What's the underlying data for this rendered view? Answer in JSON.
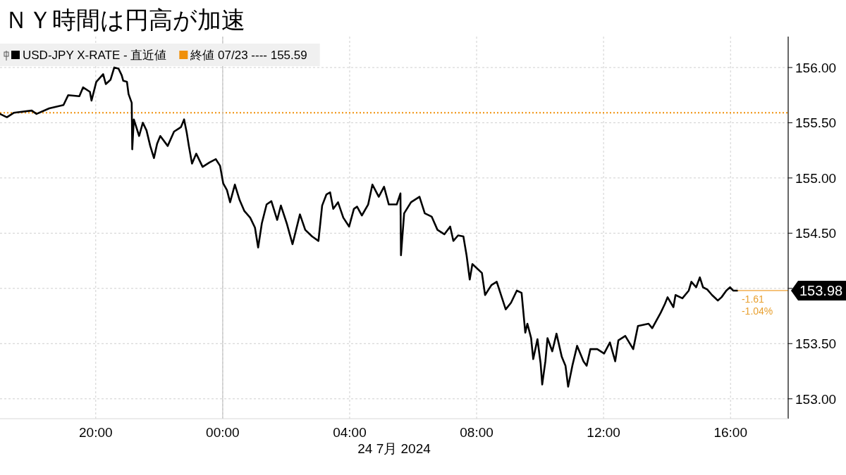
{
  "chart_data": {
    "type": "line",
    "title": "ＮＹ時間は円高が加速",
    "xlabel": "24 7月 2024",
    "xlim": [
      "2024-07-23T16:59",
      "2024-07-24T17:49"
    ],
    "xticks": [
      {
        "value": "2024-07-23T20:00",
        "label": "20:00"
      },
      {
        "value": "2024-07-24T00:00",
        "label": "00:00"
      },
      {
        "value": "2024-07-24T04:00",
        "label": "04:00"
      },
      {
        "value": "2024-07-24T08:00",
        "label": "08:00"
      },
      {
        "value": "2024-07-24T12:00",
        "label": "12:00"
      },
      {
        "value": "2024-07-24T16:00",
        "label": "16:00"
      }
    ],
    "ylim": [
      152.82,
      156.28
    ],
    "yticks": [
      {
        "value": 153,
        "label": "153.00"
      },
      {
        "value": 153.5,
        "label": "153.50"
      },
      {
        "value": 154,
        "label": null
      },
      {
        "value": 154.5,
        "label": "154.50"
      },
      {
        "value": 155,
        "label": "155.00"
      },
      {
        "value": 155.5,
        "label": "155.50"
      },
      {
        "value": 156,
        "label": "156.00"
      }
    ],
    "grid": true,
    "legend": "top left",
    "x": [
      "2024-07-23T16:59",
      "2024-07-23T17:12",
      "2024-07-23T17:25",
      "2024-07-23T17:59",
      "2024-07-23T18:08",
      "2024-07-23T18:32",
      "2024-07-23T18:59",
      "2024-07-23T19:08",
      "2024-07-23T19:29",
      "2024-07-23T19:36",
      "2024-07-23T19:49",
      "2024-07-23T19:52",
      "2024-07-23T20:01",
      "2024-07-23T20:14",
      "2024-07-23T20:19",
      "2024-07-23T20:28",
      "2024-07-23T20:35",
      "2024-07-23T20:43",
      "2024-07-23T20:49",
      "2024-07-23T20:52",
      "2024-07-23T20:59",
      "2024-07-23T21:02",
      "2024-07-23T21:08",
      "2024-07-23T21:09",
      "2024-07-23T21:12",
      "2024-07-23T21:22",
      "2024-07-23T21:29",
      "2024-07-23T21:36",
      "2024-07-23T21:43",
      "2024-07-23T21:50",
      "2024-07-23T21:56",
      "2024-07-23T22:02",
      "2024-07-23T22:16",
      "2024-07-23T22:28",
      "2024-07-23T22:41",
      "2024-07-23T22:47",
      "2024-07-23T22:52",
      "2024-07-23T22:56",
      "2024-07-23T23:02",
      "2024-07-23T23:10",
      "2024-07-23T23:22",
      "2024-07-23T23:35",
      "2024-07-23T23:47",
      "2024-07-23T23:55",
      "2024-07-24T00:01",
      "2024-07-24T00:08",
      "2024-07-24T00:14",
      "2024-07-24T00:23",
      "2024-07-24T00:32",
      "2024-07-24T00:41",
      "2024-07-24T00:52",
      "2024-07-24T01:01",
      "2024-07-24T01:07",
      "2024-07-24T01:14",
      "2024-07-24T01:23",
      "2024-07-24T01:32",
      "2024-07-24T01:43",
      "2024-07-24T01:50",
      "2024-07-24T02:01",
      "2024-07-24T02:12",
      "2024-07-24T02:26",
      "2024-07-24T02:36",
      "2024-07-24T02:49",
      "2024-07-24T03:01",
      "2024-07-24T03:08",
      "2024-07-24T03:16",
      "2024-07-24T03:23",
      "2024-07-24T03:29",
      "2024-07-24T03:38",
      "2024-07-24T03:48",
      "2024-07-24T03:59",
      "2024-07-24T04:08",
      "2024-07-24T04:14",
      "2024-07-24T04:23",
      "2024-07-24T04:35",
      "2024-07-24T04:43",
      "2024-07-24T04:55",
      "2024-07-24T05:05",
      "2024-07-24T05:14",
      "2024-07-24T05:29",
      "2024-07-24T05:36",
      "2024-07-24T05:37",
      "2024-07-24T05:43",
      "2024-07-24T05:56",
      "2024-07-24T06:12",
      "2024-07-24T06:22",
      "2024-07-24T06:35",
      "2024-07-24T06:46",
      "2024-07-24T06:59",
      "2024-07-24T07:10",
      "2024-07-24T07:16",
      "2024-07-24T07:25",
      "2024-07-24T07:35",
      "2024-07-24T07:41",
      "2024-07-24T07:47",
      "2024-07-24T07:52",
      "2024-07-24T08:10",
      "2024-07-24T08:16",
      "2024-07-24T08:28",
      "2024-07-24T08:38",
      "2024-07-24T08:55",
      "2024-07-24T09:05",
      "2024-07-24T09:16",
      "2024-07-24T09:25",
      "2024-07-24T09:32",
      "2024-07-24T09:36",
      "2024-07-24T09:43",
      "2024-07-24T09:47",
      "2024-07-24T09:55",
      "2024-07-24T10:01",
      "2024-07-24T10:04",
      "2024-07-24T10:10",
      "2024-07-24T10:14",
      "2024-07-24T10:23",
      "2024-07-24T10:31",
      "2024-07-24T10:41",
      "2024-07-24T10:48",
      "2024-07-24T10:53",
      "2024-07-24T11:01",
      "2024-07-24T11:10",
      "2024-07-24T11:22",
      "2024-07-24T11:28",
      "2024-07-24T11:35",
      "2024-07-24T11:48",
      "2024-07-24T12:01",
      "2024-07-24T12:12",
      "2024-07-24T12:22",
      "2024-07-24T12:28",
      "2024-07-24T12:41",
      "2024-07-24T12:56",
      "2024-07-24T13:05",
      "2024-07-24T13:25",
      "2024-07-24T13:32",
      "2024-07-24T13:48",
      "2024-07-24T13:56",
      "2024-07-24T14:01",
      "2024-07-24T14:12",
      "2024-07-24T14:16",
      "2024-07-24T14:29",
      "2024-07-24T14:41",
      "2024-07-24T14:46",
      "2024-07-24T14:55",
      "2024-07-24T15:02",
      "2024-07-24T15:08",
      "2024-07-24T15:16",
      "2024-07-24T15:25",
      "2024-07-24T15:36",
      "2024-07-24T15:43",
      "2024-07-24T15:52",
      "2024-07-24T15:59",
      "2024-07-24T16:05",
      "2024-07-24T16:13"
    ],
    "series": [
      {
        "name": "USD-JPY X-RATE - 直近値",
        "color": "#000000",
        "values": [
          155.58,
          155.55,
          155.59,
          155.61,
          155.58,
          155.63,
          155.66,
          155.75,
          155.74,
          155.82,
          155.78,
          155.7,
          155.87,
          155.94,
          155.85,
          155.89,
          156.0,
          155.99,
          155.93,
          155.88,
          155.87,
          155.76,
          155.68,
          155.26,
          155.53,
          155.38,
          155.5,
          155.43,
          155.29,
          155.18,
          155.31,
          155.38,
          155.29,
          155.42,
          155.46,
          155.53,
          155.41,
          155.29,
          155.13,
          155.22,
          155.1,
          155.14,
          155.17,
          155.11,
          154.95,
          154.89,
          154.78,
          154.94,
          154.8,
          154.7,
          154.64,
          154.55,
          154.37,
          154.59,
          154.76,
          154.79,
          154.62,
          154.75,
          154.59,
          154.4,
          154.67,
          154.53,
          154.47,
          154.43,
          154.75,
          154.85,
          154.87,
          154.72,
          154.78,
          154.64,
          154.56,
          154.72,
          154.74,
          154.66,
          154.76,
          154.94,
          154.83,
          154.92,
          154.76,
          154.76,
          154.86,
          154.3,
          154.68,
          154.78,
          154.83,
          154.68,
          154.65,
          154.53,
          154.49,
          154.56,
          154.43,
          154.48,
          154.47,
          154.3,
          154.08,
          154.22,
          154.14,
          153.94,
          154.03,
          154.06,
          153.81,
          153.87,
          153.98,
          153.96,
          153.6,
          153.68,
          153.55,
          153.36,
          153.54,
          153.32,
          153.13,
          153.34,
          153.55,
          153.43,
          153.59,
          153.38,
          153.3,
          153.11,
          153.3,
          153.48,
          153.34,
          153.3,
          153.45,
          153.45,
          153.41,
          153.51,
          153.34,
          153.53,
          153.57,
          153.45,
          153.66,
          153.68,
          153.64,
          153.78,
          153.86,
          153.92,
          153.83,
          153.94,
          153.91,
          153.98,
          154.06,
          154.01,
          154.1,
          154.01,
          153.99,
          153.94,
          153.89,
          153.92,
          153.98,
          154.01,
          153.98,
          153.98
        ],
        "value_labels": [
          null,
          null,
          null,
          null,
          null,
          null,
          null,
          null,
          null,
          null,
          null,
          null,
          null,
          null,
          null,
          null,
          null,
          null,
          null,
          null,
          null,
          null,
          null,
          null,
          null,
          null,
          null,
          null,
          null,
          null,
          null,
          null,
          null,
          null,
          null,
          null,
          null,
          null,
          null,
          null,
          null,
          null,
          null,
          null,
          null,
          null,
          null,
          null,
          null,
          null,
          null,
          null,
          null,
          null,
          null,
          null,
          null,
          null,
          null,
          null,
          null,
          null,
          null,
          null,
          null,
          null,
          null,
          null,
          null,
          null,
          null,
          null,
          null,
          null,
          null,
          null,
          null,
          null,
          null,
          null,
          null,
          null,
          null,
          null,
          null,
          null,
          null,
          null,
          null,
          null,
          null,
          null,
          null,
          null,
          null,
          null,
          null,
          null,
          null,
          null,
          null,
          null,
          null,
          null,
          null,
          null,
          null,
          null,
          null,
          null,
          null,
          null,
          null,
          null,
          null,
          null,
          null,
          null,
          null,
          null,
          null,
          null,
          null,
          null,
          null,
          null,
          null,
          null,
          null,
          null,
          null,
          null,
          null,
          null,
          null,
          null,
          null,
          null,
          null,
          null,
          null,
          null,
          null,
          null,
          null,
          null,
          null,
          null,
          null,
          null,
          null,
          "153.98"
        ]
      }
    ],
    "ref_lines": [
      {
        "axis": "y",
        "value": 155.59,
        "label": "終値 07/23 ---- 155.59",
        "color": "#f0900a",
        "line_style": "dotted"
      },
      {
        "axis": "x",
        "value": "2024-07-24T00:00",
        "color": "#c4c4c4",
        "line_style": "solid"
      }
    ],
    "annotations": [
      {
        "text": "-1.61",
        "x": "2024-07-24T16:13",
        "y": 153.98
      },
      {
        "text": "-1.04%",
        "x": "2024-07-24T16:13",
        "y": 153.98
      }
    ]
  }
}
